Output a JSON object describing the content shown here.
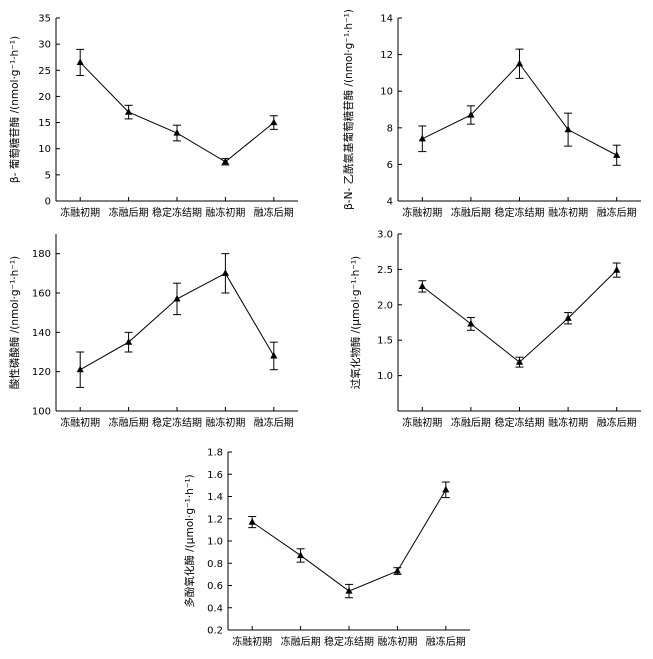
{
  "chart_data": [
    {
      "type": "line",
      "ylabel": "β- 葡萄糖苷酶 /(nmol·g⁻¹·h⁻¹)",
      "categories": [
        "冻融初期",
        "冻融后期",
        "稳定冻结期",
        "融冻初期",
        "融冻后期"
      ],
      "values": [
        26.5,
        17.0,
        13.0,
        7.5,
        15.0
      ],
      "errors": [
        2.5,
        1.3,
        1.5,
        0.6,
        1.3
      ],
      "ylim": [
        0,
        35
      ],
      "yticks": [
        "0",
        "5",
        "10",
        "15",
        "20",
        "25",
        "30",
        "35"
      ]
    },
    {
      "type": "line",
      "ylabel": "β-N- 乙酰氨基葡萄糖苷酶 /(nmol·g⁻¹·h⁻¹)",
      "categories": [
        "冻融初期",
        "冻融后期",
        "稳定冻结期",
        "融冻初期",
        "融冻后期"
      ],
      "values": [
        7.4,
        8.7,
        11.5,
        7.9,
        6.5
      ],
      "errors": [
        0.7,
        0.5,
        0.8,
        0.9,
        0.55
      ],
      "ylim": [
        4,
        14
      ],
      "yticks": [
        "4",
        "6",
        "8",
        "10",
        "12",
        "14"
      ]
    },
    {
      "type": "line",
      "ylabel": "酸性磷酸酶 /(nmol·g⁻¹·h⁻¹)",
      "categories": [
        "冻融初期",
        "冻融后期",
        "稳定冻结期",
        "融冻初期",
        "融冻后期"
      ],
      "values": [
        121,
        135,
        157,
        170,
        128
      ],
      "errors": [
        9,
        5,
        8,
        10,
        7
      ],
      "ylim": [
        100,
        190
      ],
      "yticks": [
        "100",
        "120",
        "140",
        "160",
        "180"
      ]
    },
    {
      "type": "line",
      "ylabel": "过氧化物酶 /(μmol·g⁻¹·h⁻¹)",
      "categories": [
        "冻融初期",
        "冻融后期",
        "稳定冻结期",
        "融冻初期",
        "融冻后期"
      ],
      "values": [
        2.26,
        1.73,
        1.19,
        1.81,
        2.49
      ],
      "errors": [
        0.08,
        0.09,
        0.07,
        0.08,
        0.1
      ],
      "ylim": [
        0.5,
        3.0
      ],
      "yticks": [
        "1.0",
        "1.5",
        "2.0",
        "2.5",
        "3.0"
      ]
    },
    {
      "type": "line",
      "ylabel": "多酚氧化酶 /(μmol·g⁻¹·h⁻¹)",
      "categories": [
        "冻融初期",
        "冻融后期",
        "稳定冻结期",
        "融冻初期",
        "融冻后期"
      ],
      "values": [
        1.17,
        0.87,
        0.55,
        0.73,
        1.46
      ],
      "errors": [
        0.05,
        0.06,
        0.06,
        0.03,
        0.07
      ],
      "ylim": [
        0.2,
        1.8
      ],
      "yticks": [
        "0.2",
        "0.4",
        "0.6",
        "0.8",
        "1.0",
        "1.2",
        "1.4",
        "1.6",
        "1.8"
      ]
    }
  ]
}
